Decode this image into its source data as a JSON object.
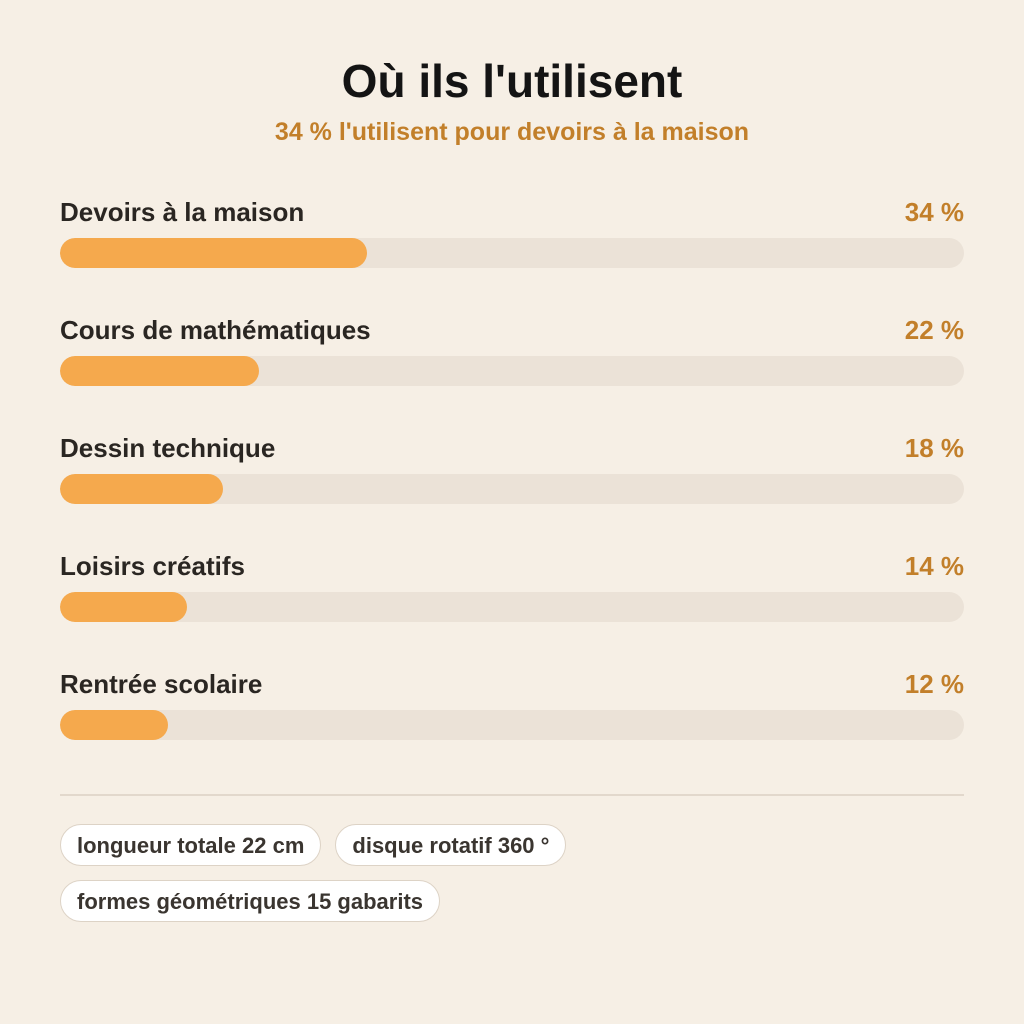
{
  "header": {
    "title": "Où ils l'utilisent",
    "subtitle": "34 % l'utilisent pour devoirs à la maison"
  },
  "chart_data": {
    "type": "bar",
    "orientation": "horizontal",
    "title": "Où ils l'utilisent",
    "subtitle": "34 % l'utilisent pour devoirs à la maison",
    "categories": [
      "Devoirs à la maison",
      "Cours de mathématiques",
      "Dessin technique",
      "Loisirs créatifs",
      "Rentrée scolaire"
    ],
    "values": [
      34,
      22,
      18,
      14,
      12
    ],
    "value_labels": [
      "34 %",
      "22 %",
      "18 %",
      "14 %",
      "12 %"
    ],
    "xlim": [
      0,
      100
    ],
    "grid": false,
    "colors": {
      "bar": "#f5a94d",
      "track": "#ebe2d7",
      "value_text": "#c27f2a"
    }
  },
  "tags": [
    [
      "longueur totale 22 cm",
      "disque rotatif 360 °"
    ],
    [
      "formes géométriques 15 gabarits"
    ]
  ]
}
